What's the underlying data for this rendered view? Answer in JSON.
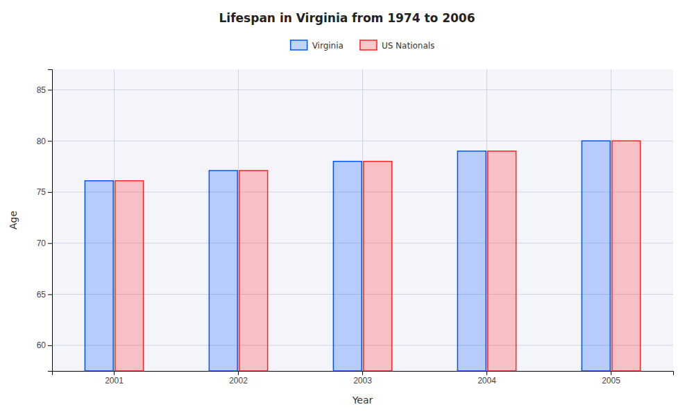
{
  "chart_data": {
    "type": "bar",
    "title": "Lifespan in Virginia from 1974 to 2006",
    "xlabel": "Year",
    "ylabel": "Age",
    "categories": [
      "2001",
      "2002",
      "2003",
      "2004",
      "2005"
    ],
    "series": [
      {
        "name": "Virginia",
        "color": "#0055ff",
        "values": [
          76.1,
          77.1,
          78.0,
          79.0,
          80.0
        ]
      },
      {
        "name": "US Nationals",
        "color": "#ff2222",
        "values": [
          76.1,
          77.1,
          78.0,
          79.0,
          80.0
        ]
      }
    ],
    "ylim": [
      57.5,
      87
    ],
    "yticks": [
      60,
      65,
      70,
      75,
      80,
      85
    ],
    "grid": true,
    "legend": "top"
  }
}
